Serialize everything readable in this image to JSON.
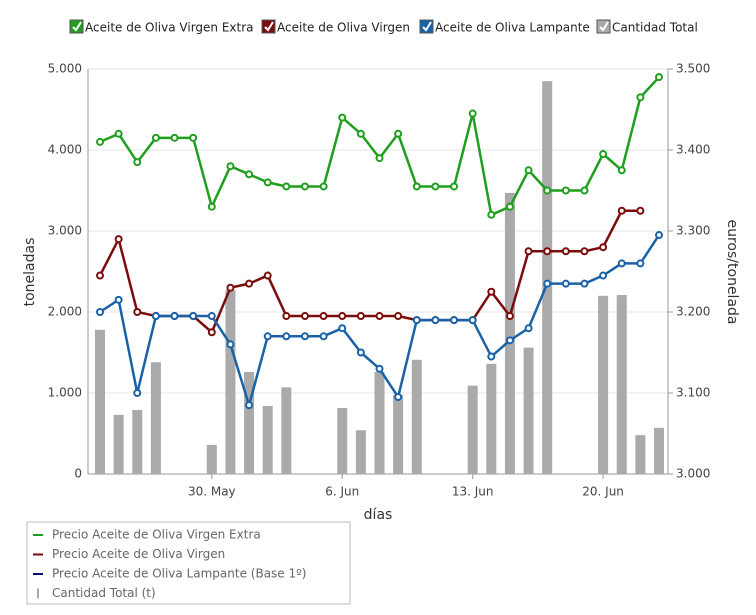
{
  "chart_data": {
    "type": "combo",
    "legend_toggles": [
      "Aceite de Oliva Virgen Extra",
      "Aceite de Oliva Virgen",
      "Aceite de Oliva Lampante",
      "Cantidad Total"
    ],
    "xlabel": "días",
    "ylabel": "toneladas",
    "y2label": "euros/tonelada",
    "categories": [
      null,
      null,
      null,
      null,
      null,
      null,
      "30. May",
      null,
      null,
      null,
      null,
      null,
      null,
      "6. Jun",
      null,
      null,
      null,
      null,
      null,
      null,
      "13. Jun",
      null,
      null,
      null,
      null,
      null,
      null,
      "20. Jun",
      null,
      null,
      null
    ],
    "ylim": [
      0,
      5000
    ],
    "yticks": [
      0,
      {
        "value": 1000,
        "label": "1.000"
      },
      {
        "value": 2000,
        "label": "2.000"
      },
      {
        "value": 3000,
        "label": "3.000"
      },
      {
        "value": 4000,
        "label": "4.000"
      },
      {
        "value": 5000,
        "label": "5.000"
      }
    ],
    "y2lim": [
      3000,
      3500
    ],
    "y2ticks": [
      {
        "value": 3000,
        "label": "3.000"
      },
      {
        "value": 3100,
        "label": "3.100"
      },
      {
        "value": 3200,
        "label": "3.200"
      },
      {
        "value": 3300,
        "label": "3.300"
      },
      {
        "value": 3400,
        "label": "3.400"
      },
      {
        "value": 3500,
        "label": "3.500"
      }
    ],
    "grid": true,
    "series": [
      {
        "name": "Cantidad Total (t)",
        "type": "bar",
        "axis": "y",
        "color": "#aaaaaa",
        "values": [
          1780,
          730,
          790,
          1380,
          null,
          null,
          360,
          2270,
          1260,
          840,
          1070,
          null,
          null,
          815,
          540,
          1260,
          975,
          1410,
          null,
          null,
          1090,
          1360,
          3470,
          1560,
          4850,
          null,
          null,
          2200,
          2210,
          480,
          570
        ]
      },
      {
        "name": "Precio Aceite de Oliva Virgen Extra",
        "type": "line",
        "axis": "y2",
        "color": "#1f9e1f",
        "values": [
          3410,
          3420,
          3385,
          3415,
          3415,
          3415,
          3330,
          3380,
          3370,
          3360,
          3355,
          3355,
          3355,
          3440,
          3420,
          3390,
          3420,
          3355,
          3355,
          3355,
          3445,
          3320,
          3330,
          3375,
          3350,
          3350,
          3350,
          3395,
          3375,
          3465,
          3490
        ]
      },
      {
        "name": "Precio Aceite de Oliva Virgen",
        "type": "line",
        "axis": "y2",
        "color": "#7a0c0c",
        "values": [
          3245,
          3290,
          3200,
          3195,
          3195,
          3195,
          3175,
          3230,
          3235,
          3245,
          3195,
          3195,
          3195,
          3195,
          3195,
          3195,
          3195,
          3190,
          3190,
          3190,
          3190,
          3225,
          3195,
          3275,
          3275,
          3275,
          3275,
          3280,
          3325,
          3325,
          null
        ]
      },
      {
        "name": "Precio Aceite de Oliva Lampante (Base 1º)",
        "type": "line",
        "axis": "y2",
        "color": "#1a62a8",
        "values": [
          3200,
          3215,
          3100,
          3195,
          3195,
          3195,
          3195,
          3160,
          3085,
          3170,
          3170,
          3170,
          3170,
          3180,
          3150,
          3130,
          3095,
          3190,
          3190,
          3190,
          3190,
          3145,
          3165,
          3180,
          3235,
          3235,
          3235,
          3245,
          3260,
          3260,
          3295
        ]
      }
    ]
  }
}
